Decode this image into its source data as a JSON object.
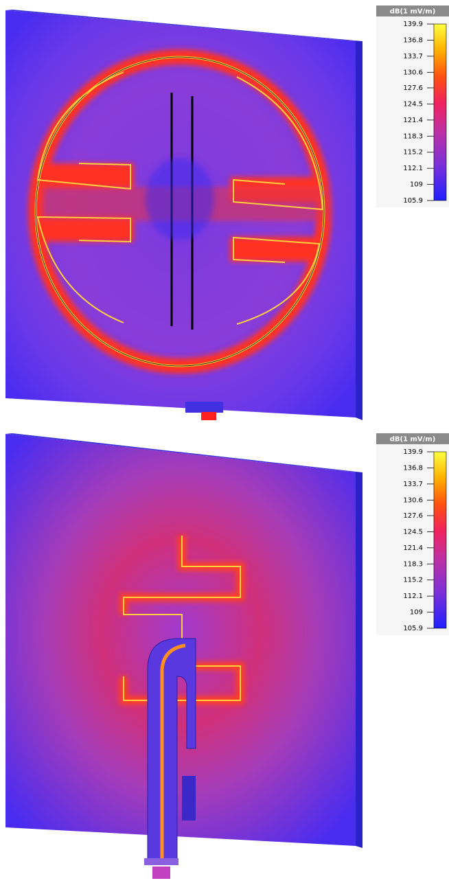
{
  "panels": [
    {
      "colorbar": {
        "title": "dB(1 mV/m)",
        "ticks": [
          139.9,
          136.8,
          133.7,
          130.6,
          127.6,
          124.5,
          121.4,
          118.3,
          115.2,
          112.1,
          109,
          105.9
        ]
      }
    },
    {
      "colorbar": {
        "title": "dB(1 mV/m)",
        "ticks": [
          139.9,
          136.8,
          133.7,
          130.6,
          127.6,
          124.5,
          121.4,
          118.3,
          115.2,
          112.1,
          109,
          105.9
        ]
      }
    }
  ]
}
